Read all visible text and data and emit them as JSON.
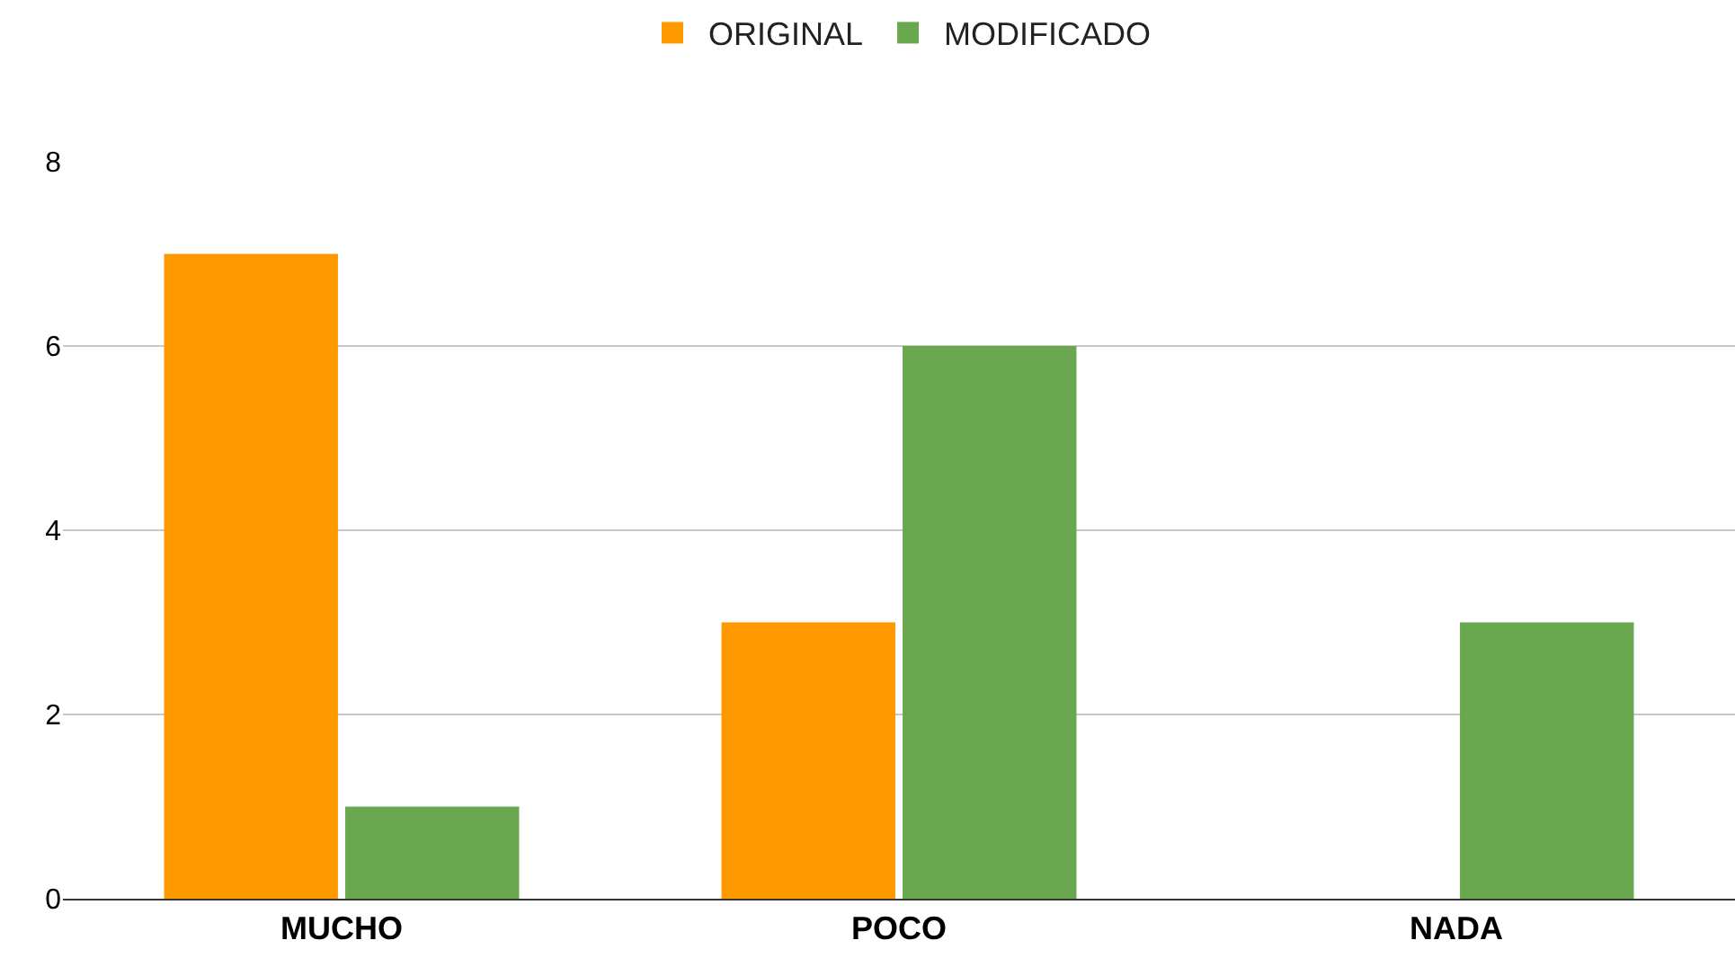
{
  "chart_data": {
    "type": "bar",
    "categories": [
      "MUCHO",
      "POCO",
      "NADA"
    ],
    "series": [
      {
        "name": "ORIGINAL",
        "color": "#ff9900",
        "values": [
          7,
          3,
          0
        ]
      },
      {
        "name": "MODIFICADO",
        "color": "#6aa84f",
        "values": [
          1,
          6,
          3
        ]
      }
    ],
    "ylim": [
      0,
      8
    ],
    "yticks": [
      0,
      2,
      4,
      6,
      8
    ],
    "grid": "y",
    "legend": "top"
  }
}
